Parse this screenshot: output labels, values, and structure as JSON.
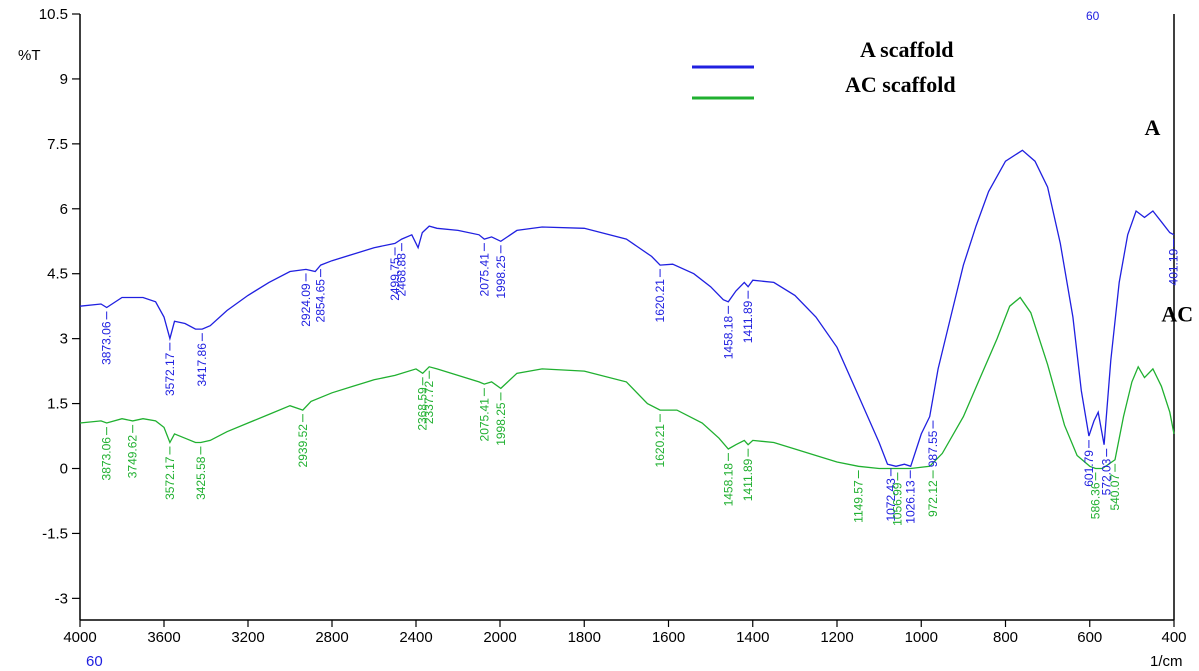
{
  "chart_data": {
    "type": "line",
    "xlabel": "1/cm",
    "ylabel": "%T",
    "xlim": [
      4000,
      400
    ],
    "ylim": [
      -3.5,
      10.5
    ],
    "x_ticks": [
      4000,
      3600,
      3200,
      2800,
      2400,
      2000,
      1800,
      1600,
      1400,
      1200,
      1000,
      800,
      600,
      400
    ],
    "y_ticks": [
      -3,
      -1.5,
      0,
      1.5,
      3,
      4.5,
      6,
      7.5,
      9,
      10.5
    ],
    "y_tick_labels": [
      "-3",
      "-1.5",
      "0",
      "1.5",
      "3",
      "4.5",
      "6",
      "7.5",
      "9",
      "10.5"
    ],
    "x_extra_label": "60",
    "top_partial_label": "60",
    "legend": [
      {
        "label": "A  scaffold",
        "color": "#2020e0"
      },
      {
        "label": "AC scaffold",
        "color": "#20b030"
      }
    ],
    "series": [
      {
        "name": "A",
        "color": "#2020e0",
        "points": [
          [
            4000,
            3.75
          ],
          [
            3900,
            3.8
          ],
          [
            3873,
            3.72
          ],
          [
            3800,
            3.95
          ],
          [
            3700,
            3.95
          ],
          [
            3640,
            3.85
          ],
          [
            3600,
            3.5
          ],
          [
            3572,
            3.0
          ],
          [
            3550,
            3.4
          ],
          [
            3500,
            3.35
          ],
          [
            3450,
            3.22
          ],
          [
            3418,
            3.22
          ],
          [
            3380,
            3.3
          ],
          [
            3300,
            3.65
          ],
          [
            3200,
            4.0
          ],
          [
            3100,
            4.3
          ],
          [
            3000,
            4.55
          ],
          [
            2924,
            4.6
          ],
          [
            2880,
            4.55
          ],
          [
            2854,
            4.7
          ],
          [
            2800,
            4.8
          ],
          [
            2700,
            4.95
          ],
          [
            2600,
            5.1
          ],
          [
            2500,
            5.2
          ],
          [
            2468,
            5.3
          ],
          [
            2420,
            5.4
          ],
          [
            2390,
            5.1
          ],
          [
            2370,
            5.45
          ],
          [
            2337,
            5.6
          ],
          [
            2300,
            5.55
          ],
          [
            2200,
            5.5
          ],
          [
            2100,
            5.4
          ],
          [
            2075,
            5.3
          ],
          [
            2040,
            5.35
          ],
          [
            1998,
            5.25
          ],
          [
            1960,
            5.5
          ],
          [
            1900,
            5.58
          ],
          [
            1800,
            5.55
          ],
          [
            1700,
            5.3
          ],
          [
            1640,
            4.9
          ],
          [
            1620,
            4.7
          ],
          [
            1590,
            4.72
          ],
          [
            1540,
            4.5
          ],
          [
            1500,
            4.2
          ],
          [
            1470,
            3.9
          ],
          [
            1458,
            3.85
          ],
          [
            1440,
            4.1
          ],
          [
            1420,
            4.3
          ],
          [
            1411,
            4.2
          ],
          [
            1400,
            4.35
          ],
          [
            1350,
            4.3
          ],
          [
            1300,
            4.0
          ],
          [
            1250,
            3.5
          ],
          [
            1200,
            2.8
          ],
          [
            1150,
            1.7
          ],
          [
            1100,
            0.6
          ],
          [
            1080,
            0.1
          ],
          [
            1060,
            0.05
          ],
          [
            1040,
            0.1
          ],
          [
            1025,
            0.05
          ],
          [
            1000,
            0.8
          ],
          [
            980,
            1.2
          ],
          [
            960,
            2.3
          ],
          [
            930,
            3.5
          ],
          [
            900,
            4.7
          ],
          [
            870,
            5.6
          ],
          [
            840,
            6.4
          ],
          [
            800,
            7.1
          ],
          [
            760,
            7.35
          ],
          [
            730,
            7.1
          ],
          [
            700,
            6.5
          ],
          [
            670,
            5.2
          ],
          [
            640,
            3.5
          ],
          [
            620,
            1.8
          ],
          [
            602,
            0.75
          ],
          [
            590,
            1.1
          ],
          [
            580,
            1.3
          ],
          [
            566,
            0.55
          ],
          [
            550,
            2.5
          ],
          [
            530,
            4.3
          ],
          [
            510,
            5.4
          ],
          [
            490,
            5.95
          ],
          [
            470,
            5.8
          ],
          [
            450,
            5.95
          ],
          [
            430,
            5.7
          ],
          [
            410,
            5.45
          ],
          [
            400,
            5.4
          ]
        ]
      },
      {
        "name": "AC",
        "color": "#20b030",
        "points": [
          [
            4000,
            1.05
          ],
          [
            3900,
            1.1
          ],
          [
            3873,
            1.05
          ],
          [
            3800,
            1.15
          ],
          [
            3749,
            1.1
          ],
          [
            3700,
            1.15
          ],
          [
            3640,
            1.1
          ],
          [
            3600,
            0.95
          ],
          [
            3572,
            0.6
          ],
          [
            3550,
            0.8
          ],
          [
            3500,
            0.7
          ],
          [
            3450,
            0.6
          ],
          [
            3425,
            0.6
          ],
          [
            3380,
            0.65
          ],
          [
            3300,
            0.85
          ],
          [
            3200,
            1.05
          ],
          [
            3100,
            1.25
          ],
          [
            3000,
            1.45
          ],
          [
            2939,
            1.35
          ],
          [
            2900,
            1.55
          ],
          [
            2800,
            1.75
          ],
          [
            2700,
            1.9
          ],
          [
            2600,
            2.05
          ],
          [
            2500,
            2.15
          ],
          [
            2400,
            2.3
          ],
          [
            2368,
            2.2
          ],
          [
            2337,
            2.35
          ],
          [
            2300,
            2.3
          ],
          [
            2200,
            2.15
          ],
          [
            2100,
            2.0
          ],
          [
            2075,
            1.95
          ],
          [
            2040,
            2.0
          ],
          [
            1998,
            1.85
          ],
          [
            1960,
            2.2
          ],
          [
            1900,
            2.3
          ],
          [
            1800,
            2.25
          ],
          [
            1700,
            2.0
          ],
          [
            1650,
            1.5
          ],
          [
            1620,
            1.35
          ],
          [
            1580,
            1.35
          ],
          [
            1520,
            1.05
          ],
          [
            1480,
            0.7
          ],
          [
            1458,
            0.45
          ],
          [
            1440,
            0.55
          ],
          [
            1420,
            0.65
          ],
          [
            1411,
            0.55
          ],
          [
            1400,
            0.65
          ],
          [
            1350,
            0.6
          ],
          [
            1300,
            0.45
          ],
          [
            1250,
            0.3
          ],
          [
            1200,
            0.15
          ],
          [
            1149,
            0.05
          ],
          [
            1100,
            0.0
          ],
          [
            1072,
            0.0
          ],
          [
            1056,
            0.0
          ],
          [
            1025,
            0.0
          ],
          [
            980,
            0.05
          ],
          [
            950,
            0.35
          ],
          [
            900,
            1.2
          ],
          [
            860,
            2.1
          ],
          [
            820,
            3.0
          ],
          [
            790,
            3.75
          ],
          [
            765,
            3.95
          ],
          [
            740,
            3.6
          ],
          [
            700,
            2.4
          ],
          [
            660,
            1.0
          ],
          [
            630,
            0.3
          ],
          [
            600,
            0.05
          ],
          [
            586,
            0.0
          ],
          [
            570,
            0.0
          ],
          [
            540,
            0.2
          ],
          [
            520,
            1.2
          ],
          [
            500,
            2.0
          ],
          [
            485,
            2.35
          ],
          [
            470,
            2.1
          ],
          [
            450,
            2.3
          ],
          [
            430,
            1.9
          ],
          [
            410,
            1.3
          ],
          [
            400,
            0.8
          ]
        ]
      }
    ],
    "peak_labels_A": [
      {
        "x": 3873,
        "text": "3873.06"
      },
      {
        "x": 3572,
        "text": "3572.17"
      },
      {
        "x": 3418,
        "text": "3417.86"
      },
      {
        "x": 2924,
        "text": "2924.09"
      },
      {
        "x": 2854,
        "text": "2854.65"
      },
      {
        "x": 2500,
        "text": "2499.75"
      },
      {
        "x": 2468,
        "text": "2468.88"
      },
      {
        "x": 2075,
        "text": "2075.41"
      },
      {
        "x": 1998,
        "text": "1998.25"
      },
      {
        "x": 1620,
        "text": "1620.21"
      },
      {
        "x": 1458,
        "text": "1458.18"
      },
      {
        "x": 1411,
        "text": "1411.89"
      },
      {
        "x": 1072,
        "text": "1072.43"
      },
      {
        "x": 1026,
        "text": "1026.13"
      },
      {
        "x": 972,
        "text": "987.55"
      },
      {
        "x": 602,
        "text": "601.79"
      },
      {
        "x": 560,
        "text": "572.03"
      },
      {
        "x": 401,
        "text": "401.19"
      }
    ],
    "peak_labels_AC": [
      {
        "x": 3873,
        "text": "3873.06"
      },
      {
        "x": 3749,
        "text": "3749.62"
      },
      {
        "x": 3572,
        "text": "3572.17"
      },
      {
        "x": 3425,
        "text": "3425.58"
      },
      {
        "x": 2939,
        "text": "2939.52"
      },
      {
        "x": 2368,
        "text": "2368.59"
      },
      {
        "x": 2337,
        "text": "2337.72"
      },
      {
        "x": 2075,
        "text": "2075.41"
      },
      {
        "x": 1998,
        "text": "1998.25"
      },
      {
        "x": 1620,
        "text": "1620.21"
      },
      {
        "x": 1458,
        "text": "1458.18"
      },
      {
        "x": 1411,
        "text": "1411.89"
      },
      {
        "x": 1149,
        "text": "1149.57"
      },
      {
        "x": 1056,
        "text": "1056.99"
      },
      {
        "x": 972,
        "text": "972.12"
      },
      {
        "x": 586,
        "text": "586.36"
      },
      {
        "x": 540,
        "text": "540.07"
      }
    ],
    "series_tags": [
      {
        "text": "A",
        "x": 470,
        "y": 7.7
      },
      {
        "text": "AC",
        "x": 430,
        "y": 3.4
      }
    ]
  }
}
